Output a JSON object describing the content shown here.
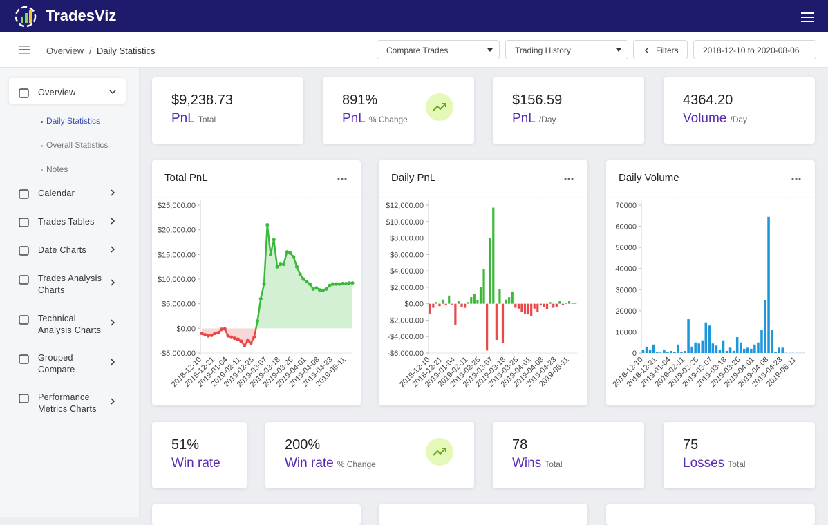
{
  "header": {
    "brand": "TradesViz"
  },
  "breadcrumb": {
    "items": [
      "Overview",
      "Daily Statistics"
    ],
    "separator": "/"
  },
  "toolbar": {
    "compare": "Compare Trades",
    "history": "Trading History",
    "filters": "Filters",
    "date_range": "2018-12-10 to 2020-08-06"
  },
  "sidebar": [
    {
      "label": [
        "Overview"
      ],
      "children": [
        "Daily Statistics",
        "Overall Statistics",
        "Notes"
      ]
    },
    {
      "label": [
        "Calendar"
      ]
    },
    {
      "label": [
        "Trades Tables"
      ]
    },
    {
      "label": [
        "Date Charts"
      ]
    },
    {
      "label": [
        "Trades Analysis",
        "Charts"
      ]
    },
    {
      "label": [
        "Technical",
        "Analysis Charts"
      ]
    },
    {
      "label": [
        "Grouped",
        "Compare"
      ]
    },
    {
      "label": [
        "Performance",
        "Metrics Charts"
      ]
    }
  ],
  "stats_top": [
    {
      "value": "$9,238.73",
      "label": "PnL",
      "sub": "Total"
    },
    {
      "value": "891%",
      "label": "PnL",
      "sub": "% Change"
    },
    {
      "value": "$156.59",
      "label": "PnL",
      "sub": "/Day"
    },
    {
      "value": "4364.20",
      "label": "Volume",
      "sub": "/Day"
    }
  ],
  "stats_bottom": [
    {
      "value": "51%",
      "label": "Win rate"
    },
    {
      "value": "200%",
      "label": "Win rate",
      "sub": "% Change"
    },
    {
      "value": "78",
      "label": "Wins",
      "sub": "Total"
    },
    {
      "value": "75",
      "label": "Losses",
      "sub": "Total"
    }
  ],
  "chart_data": [
    {
      "type": "line",
      "title": "Total PnL",
      "color": "#3cb93c",
      "negative_color": "#e94848",
      "categories": [
        "2018-12-10",
        null,
        null,
        null,
        "2018-12-21",
        null,
        null,
        null,
        "2019-01-04",
        null,
        null,
        null,
        "2019-02-11",
        null,
        null,
        null,
        "2019-02-25",
        null,
        null,
        null,
        "2019-03-07",
        null,
        null,
        null,
        "2019-03-18",
        null,
        null,
        null,
        "2019-03-25",
        null,
        null,
        null,
        "2019-04-01",
        null,
        null,
        null,
        "2019-04-08",
        null,
        null,
        null,
        "2019-04-23",
        null,
        null,
        null,
        "2019-06-11",
        null,
        null
      ],
      "values": [
        -1000,
        -1300,
        -1500,
        -1400,
        -1000,
        -900,
        -200,
        -100,
        -1500,
        -1800,
        -2000,
        -2200,
        -2600,
        -3500,
        -2500,
        -3000,
        -1800,
        1500,
        6000,
        9000,
        21000,
        15000,
        18000,
        12500,
        13000,
        13000,
        15500,
        15300,
        14500,
        12500,
        11000,
        10000,
        9500,
        9000,
        8000,
        8200,
        7800,
        7700,
        8000,
        8700,
        9000,
        9000,
        9000,
        9100,
        9100,
        9200,
        9200
      ],
      "ylim": [
        -5000,
        25000
      ],
      "yticks": [
        {
          "value": -5000,
          "label": "-$5,000.00"
        },
        {
          "value": 0,
          "label": "$0.00"
        },
        {
          "value": 5000,
          "label": "$5,000.00"
        },
        {
          "value": 10000,
          "label": "$10,000.00"
        },
        {
          "value": 15000,
          "label": "$15,000.00"
        },
        {
          "value": 20000,
          "label": "$20,000.00"
        },
        {
          "value": 25000,
          "label": "$25,000.00"
        }
      ]
    },
    {
      "type": "bar",
      "title": "Daily PnL",
      "color": "#3cb93c",
      "negative_color": "#e94848",
      "categories": [
        "2018-12-10",
        null,
        null,
        null,
        "2018-12-21",
        null,
        null,
        null,
        "2019-01-04",
        null,
        null,
        null,
        "2019-02-11",
        null,
        null,
        null,
        "2019-02-25",
        null,
        null,
        null,
        "2019-03-07",
        null,
        null,
        null,
        "2019-03-18",
        null,
        null,
        null,
        "2019-03-25",
        null,
        null,
        null,
        "2019-04-01",
        null,
        null,
        null,
        "2019-04-08",
        null,
        null,
        null,
        "2019-04-23",
        null,
        null,
        null,
        "2019-06-11",
        null,
        null
      ],
      "values": [
        -1200,
        -500,
        200,
        -300,
        500,
        -200,
        1000,
        -100,
        -2600,
        300,
        -400,
        -500,
        200,
        800,
        1200,
        400,
        2000,
        4200,
        -5700,
        8000,
        11700,
        -4400,
        1800,
        -4800,
        500,
        800,
        1500,
        -500,
        -600,
        -1000,
        -1200,
        -1300,
        -1500,
        -600,
        -1000,
        -200,
        -400,
        -700,
        200,
        -500,
        -400,
        300,
        -200,
        100,
        300,
        100,
        100
      ],
      "ylim": [
        -6000,
        12000
      ],
      "yticks": [
        {
          "value": -6000,
          "label": "-$6,000.00"
        },
        {
          "value": -4000,
          "label": "-$4,000.00"
        },
        {
          "value": -2000,
          "label": "-$2,000.00"
        },
        {
          "value": 0,
          "label": "$0.00"
        },
        {
          "value": 2000,
          "label": "$2,000.00"
        },
        {
          "value": 4000,
          "label": "$4,000.00"
        },
        {
          "value": 6000,
          "label": "$6,000.00"
        },
        {
          "value": 8000,
          "label": "$8,000.00"
        },
        {
          "value": 10000,
          "label": "$10,000.00"
        },
        {
          "value": 12000,
          "label": "$12,000.00"
        }
      ]
    },
    {
      "type": "bar",
      "title": "Daily Volume",
      "color": "#1e96dc",
      "categories": [
        "2018-12-10",
        null,
        null,
        null,
        "2018-12-21",
        null,
        null,
        null,
        "2019-01-04",
        null,
        null,
        null,
        "2019-02-11",
        null,
        null,
        null,
        "2019-02-25",
        null,
        null,
        null,
        "2019-03-07",
        null,
        null,
        null,
        "2019-03-18",
        null,
        null,
        null,
        "2019-03-25",
        null,
        null,
        null,
        "2019-04-01",
        null,
        null,
        null,
        "2019-04-08",
        null,
        null,
        null,
        "2019-04-23",
        null,
        null,
        null,
        "2019-06-11",
        null,
        null
      ],
      "values": [
        1500,
        3000,
        1500,
        4000,
        300,
        200,
        1500,
        600,
        1000,
        500,
        4000,
        500,
        1000,
        16000,
        3000,
        5000,
        4500,
        6000,
        14500,
        13000,
        4500,
        3500,
        1500,
        6000,
        1000,
        2500,
        1000,
        7500,
        5000,
        2000,
        2500,
        2000,
        4000,
        5000,
        11000,
        25000,
        64500,
        11000,
        500,
        2500,
        2500,
        100,
        50,
        50,
        50,
        50,
        50
      ],
      "ylim": [
        0,
        70000
      ],
      "yticks": [
        0,
        10000,
        20000,
        30000,
        40000,
        50000,
        60000,
        70000
      ]
    }
  ]
}
